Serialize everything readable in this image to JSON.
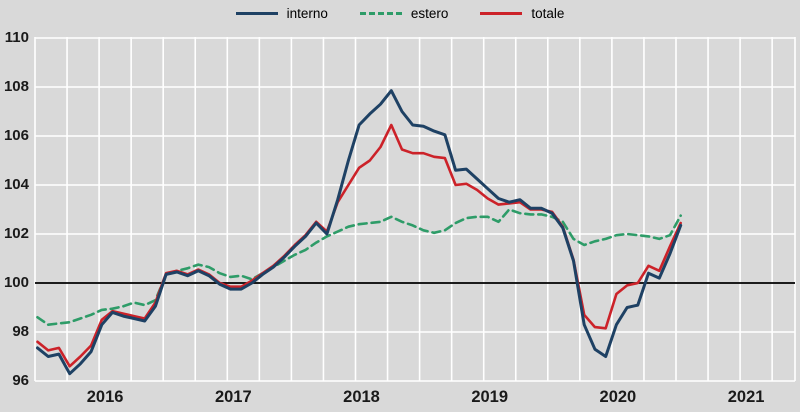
{
  "legend": {
    "items": [
      {
        "label": "interno"
      },
      {
        "label": "estero"
      },
      {
        "label": "totale"
      }
    ]
  },
  "chart_data": {
    "type": "line",
    "title": "",
    "xlabel": "",
    "ylabel": "",
    "frequency": "monthly",
    "legend_position": "top",
    "grid": true,
    "background_color": "#d9d9d9",
    "gridline_color": "#ffffff",
    "baseline": 100,
    "baseline_color": "#000000",
    "ylim": [
      96,
      110
    ],
    "y_ticks": [
      110,
      108,
      106,
      104,
      102,
      100,
      98,
      96
    ],
    "x_year_labels": [
      "2016",
      "2017",
      "2018",
      "2019",
      "2020",
      "2021"
    ],
    "categories": [
      "2016-01",
      "2016-02",
      "2016-03",
      "2016-04",
      "2016-05",
      "2016-06",
      "2016-07",
      "2016-08",
      "2016-09",
      "2016-10",
      "2016-11",
      "2016-12",
      "2017-01",
      "2017-02",
      "2017-03",
      "2017-04",
      "2017-05",
      "2017-06",
      "2017-07",
      "2017-08",
      "2017-09",
      "2017-10",
      "2017-11",
      "2017-12",
      "2018-01",
      "2018-02",
      "2018-03",
      "2018-04",
      "2018-05",
      "2018-06",
      "2018-07",
      "2018-08",
      "2018-09",
      "2018-10",
      "2018-11",
      "2018-12",
      "2019-01",
      "2019-02",
      "2019-03",
      "2019-04",
      "2019-05",
      "2019-06",
      "2019-07",
      "2019-08",
      "2019-09",
      "2019-10",
      "2019-11",
      "2019-12",
      "2020-01",
      "2020-02",
      "2020-03",
      "2020-04",
      "2020-05",
      "2020-06",
      "2020-07",
      "2020-08",
      "2020-09",
      "2020-10",
      "2020-11",
      "2020-12",
      "2021-01"
    ],
    "series": [
      {
        "name": "interno",
        "color": "#1e4164",
        "dash": false,
        "width": 3,
        "values": [
          97.35,
          97.0,
          97.1,
          96.3,
          96.7,
          97.2,
          98.3,
          98.8,
          98.65,
          98.55,
          98.45,
          99.05,
          100.35,
          100.45,
          100.3,
          100.5,
          100.3,
          99.95,
          99.75,
          99.75,
          100.0,
          100.35,
          100.65,
          101.05,
          101.5,
          101.9,
          102.45,
          102.0,
          103.4,
          105.0,
          106.45,
          106.9,
          107.3,
          107.85,
          107.0,
          106.45,
          106.4,
          106.2,
          106.05,
          104.6,
          104.65,
          104.25,
          103.85,
          103.45,
          103.3,
          103.4,
          103.05,
          103.05,
          102.85,
          102.25,
          100.9,
          98.3,
          97.3,
          97.0,
          98.3,
          99.0,
          99.1,
          100.4,
          100.2,
          101.2,
          102.35
        ]
      },
      {
        "name": "estero",
        "color": "#2e9c68",
        "dash": true,
        "width": 2.6,
        "values": [
          98.6,
          98.3,
          98.35,
          98.4,
          98.55,
          98.7,
          98.9,
          98.95,
          99.05,
          99.2,
          99.1,
          99.3,
          100.35,
          100.5,
          100.6,
          100.75,
          100.65,
          100.4,
          100.25,
          100.3,
          100.15,
          100.4,
          100.65,
          100.9,
          101.15,
          101.35,
          101.65,
          101.9,
          102.1,
          102.3,
          102.4,
          102.45,
          102.5,
          102.7,
          102.5,
          102.35,
          102.15,
          102.05,
          102.15,
          102.45,
          102.65,
          102.7,
          102.7,
          102.5,
          103.0,
          102.85,
          102.8,
          102.8,
          102.7,
          102.5,
          101.8,
          101.55,
          101.7,
          101.8,
          101.95,
          102.0,
          101.95,
          101.9,
          101.8,
          101.95,
          102.75
        ]
      },
      {
        "name": "totale",
        "color": "#cc2229",
        "dash": false,
        "width": 2.6,
        "values": [
          97.6,
          97.25,
          97.35,
          96.6,
          97.0,
          97.45,
          98.5,
          98.85,
          98.75,
          98.65,
          98.55,
          99.2,
          100.4,
          100.5,
          100.35,
          100.55,
          100.35,
          100.0,
          99.85,
          99.85,
          100.1,
          100.4,
          100.7,
          101.1,
          101.55,
          101.95,
          102.5,
          102.1,
          103.3,
          104.0,
          104.7,
          105.0,
          105.55,
          106.45,
          105.45,
          105.3,
          105.3,
          105.15,
          105.1,
          104.0,
          104.05,
          103.8,
          103.45,
          103.2,
          103.25,
          103.3,
          103.0,
          103.0,
          102.9,
          102.3,
          100.95,
          98.7,
          98.2,
          98.15,
          99.55,
          99.9,
          100.0,
          100.7,
          100.5,
          101.5,
          102.45
        ]
      }
    ]
  }
}
